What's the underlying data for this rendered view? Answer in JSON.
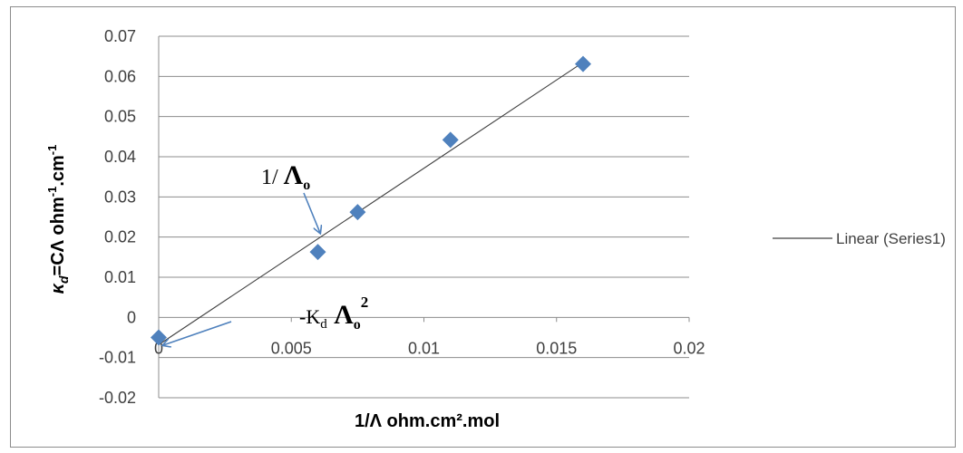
{
  "chart_data": {
    "type": "scatter",
    "xlim": [
      0,
      0.02
    ],
    "ylim": [
      -0.02,
      0.07
    ],
    "x_ticks": [
      "0",
      "0.005",
      "0.01",
      "0.015",
      "0.02"
    ],
    "x_tick_values": [
      0,
      0.005,
      0.01,
      0.015,
      0.02
    ],
    "y_ticks": [
      "0.07",
      "0.06",
      "0.05",
      "0.04",
      "0.03",
      "0.02",
      "0.01",
      "0",
      "-0.01",
      "-0.02"
    ],
    "y_tick_values": [
      0.07,
      0.06,
      0.05,
      0.04,
      0.03,
      0.02,
      0.01,
      0,
      -0.01,
      -0.02
    ],
    "xlabel": "1/Λ ohm.cm².mol",
    "ylabel": {
      "kappa": "κ",
      "sub": "d",
      "main": "=CΛ ohm",
      "sup1": "-1",
      "mid": ".cm",
      "sup2": "-1"
    },
    "grid": "horizontal",
    "series": [
      {
        "marker": "diamond",
        "color": "#4f81bd",
        "x": [
          0,
          0.006,
          0.0075,
          0.011,
          0.016
        ],
        "y": [
          -0.005,
          0.0163,
          0.0262,
          0.0442,
          0.0631
        ]
      }
    ],
    "trendline": {
      "legend_label": "Linear (Series1)",
      "color": "#404040",
      "x": [
        0,
        0.016
      ],
      "y": [
        -0.0068,
        0.0635
      ]
    },
    "legend_position": "right",
    "annotations": {
      "slope": {
        "prefix": "1/ ",
        "symbol": "Λ",
        "sub": "o"
      },
      "intercept": {
        "prefix": "-K",
        "sub1": "d",
        "symbol": " Λ",
        "sub2": "o",
        "sup": "2"
      }
    },
    "arrow_color": "#4f81bd"
  }
}
